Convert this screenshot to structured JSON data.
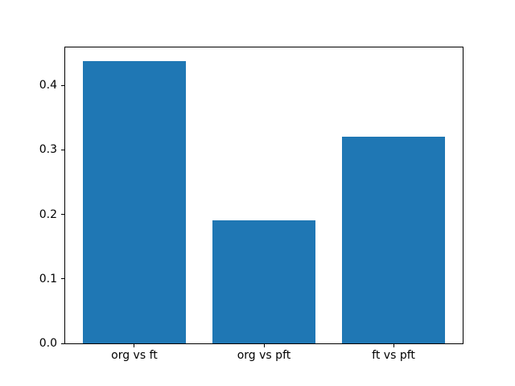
{
  "chart_data": {
    "type": "bar",
    "title": "",
    "xlabel": "",
    "ylabel": "",
    "categories": [
      "org vs ft",
      "org vs pft",
      "ft vs pft"
    ],
    "values": [
      0.438,
      0.191,
      0.321
    ],
    "ylim": [
      0,
      0.46
    ],
    "yticks": [
      0.0,
      0.1,
      0.2,
      0.3,
      0.4
    ],
    "ytick_labels": [
      "0.0",
      "0.1",
      "0.2",
      "0.3",
      "0.4"
    ],
    "bar_color": "#1f77b4",
    "spine_color": "#000000",
    "background_color": "#ffffff",
    "grid": false,
    "legend": null
  }
}
